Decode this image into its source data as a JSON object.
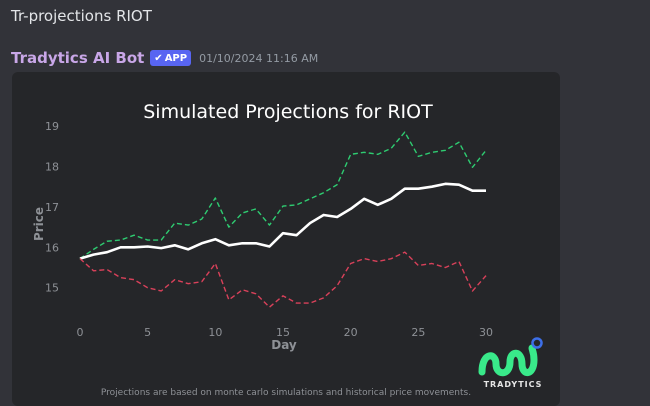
{
  "command": "Tr-projections RIOT",
  "message": {
    "author": "Tradytics AI Bot",
    "badge": "APP",
    "timestamp": "01/10/2024 11:16 AM"
  },
  "embed": {
    "footnote": "Projections are based on monte carlo simulations and historical price movements.",
    "logo_text": "TRADYTICS"
  },
  "chart_data": {
    "type": "line",
    "title": "Simulated Projections for RIOT",
    "xlabel": "Day",
    "ylabel": "Price",
    "xlim": [
      0,
      30
    ],
    "ylim": [
      14.4,
      19.1
    ],
    "x_ticks": [
      0,
      5,
      10,
      15,
      20,
      25,
      30
    ],
    "y_ticks": [
      15,
      16,
      17,
      18,
      19
    ],
    "grid": false,
    "x": [
      0,
      1,
      2,
      3,
      4,
      5,
      6,
      7,
      8,
      9,
      10,
      11,
      12,
      13,
      14,
      15,
      16,
      17,
      18,
      19,
      20,
      21,
      22,
      23,
      24,
      25,
      26,
      27,
      28,
      29,
      30
    ],
    "series": [
      {
        "color": "#2ecc71",
        "style": "dashed",
        "values": [
          15.72,
          15.95,
          16.15,
          16.18,
          16.3,
          16.18,
          16.18,
          16.6,
          16.55,
          16.7,
          17.22,
          16.5,
          16.85,
          16.95,
          16.55,
          17.02,
          17.05,
          17.2,
          17.35,
          17.55,
          18.3,
          18.35,
          18.3,
          18.45,
          18.85,
          18.25,
          18.35,
          18.4,
          18.6,
          17.98,
          18.4
        ]
      },
      {
        "color": "#ffffff",
        "style": "solid",
        "values": [
          15.72,
          15.82,
          15.88,
          16.0,
          16.0,
          16.02,
          15.98,
          16.05,
          15.95,
          16.1,
          16.2,
          16.05,
          16.1,
          16.1,
          16.02,
          16.35,
          16.3,
          16.6,
          16.8,
          16.75,
          16.95,
          17.2,
          17.05,
          17.2,
          17.45,
          17.45,
          17.5,
          17.57,
          17.55,
          17.4,
          17.4
        ]
      },
      {
        "color": "#d9415a",
        "style": "dashed",
        "values": [
          15.72,
          15.42,
          15.45,
          15.25,
          15.2,
          15.0,
          14.92,
          15.2,
          15.1,
          15.15,
          15.6,
          14.7,
          14.95,
          14.85,
          14.52,
          14.8,
          14.62,
          14.62,
          14.75,
          15.05,
          15.6,
          15.72,
          15.65,
          15.72,
          15.88,
          15.55,
          15.6,
          15.5,
          15.65,
          14.92,
          15.3
        ]
      }
    ]
  },
  "colors": {
    "background": "#323339",
    "embed_bg": "#252629",
    "author": "#c9a7e8",
    "badge": "#5865f2",
    "logo_green": "#39e98a",
    "logo_ring": "#3d6fe8"
  }
}
